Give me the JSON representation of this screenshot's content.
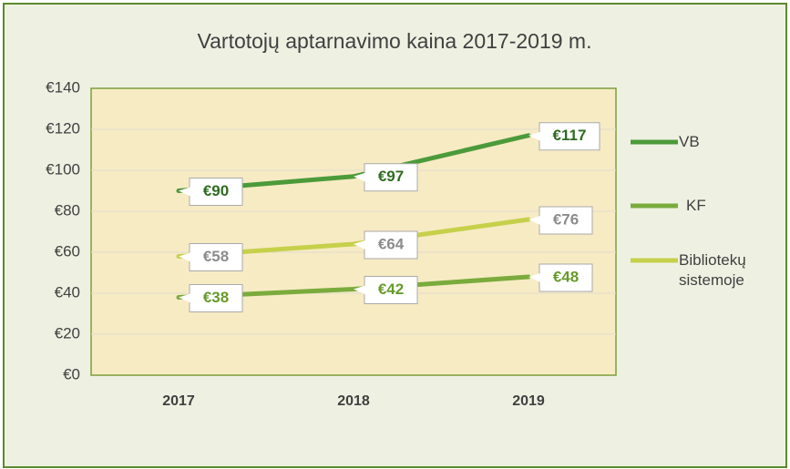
{
  "chart_data": {
    "type": "line",
    "title": "Vartotojų aptarnavimo kaina 2017-2019 m.",
    "categories": [
      "2017",
      "2018",
      "2019"
    ],
    "series": [
      {
        "name": "VB",
        "color": "#4c9a3a",
        "label_color": "#2e6b1f",
        "values": [
          90,
          97,
          117
        ],
        "value_labels": [
          "€90",
          "€97",
          "€117"
        ]
      },
      {
        "name": "KF",
        "color": "#7aab3c",
        "label_color": "#679a2a",
        "values": [
          38,
          42,
          48
        ],
        "value_labels": [
          "€38",
          "€42",
          "€48"
        ]
      },
      {
        "name": "Bibliotekų sistemoje",
        "color": "#c6d04a",
        "label_color": "#8c8c8c",
        "values": [
          58,
          64,
          76
        ],
        "value_labels": [
          "€58",
          "€64",
          "€76"
        ]
      }
    ],
    "ylim": [
      0,
      140
    ],
    "yticks": [
      {
        "value": 0,
        "label": "€0"
      },
      {
        "value": 20,
        "label": "€20"
      },
      {
        "value": 40,
        "label": "€40"
      },
      {
        "value": 60,
        "label": "€60"
      },
      {
        "value": 80,
        "label": "€80"
      },
      {
        "value": 100,
        "label": "€100"
      },
      {
        "value": 120,
        "label": "€120"
      },
      {
        "value": 140,
        "label": "€140"
      }
    ],
    "grid": true
  }
}
